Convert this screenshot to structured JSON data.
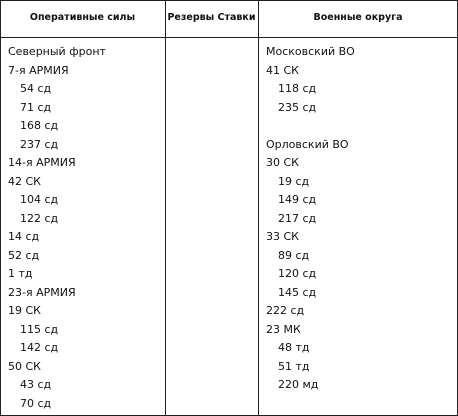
{
  "table": {
    "headers": [
      "Оперативные силы",
      "Резервы Ставки",
      "Военные округа"
    ],
    "columns": [
      [
        {
          "title": "Северный фронт",
          "units": [
            {
              "label": "7-я АРМИЯ",
              "sub": [
                "54 сд",
                "71 сд",
                "168 сд",
                "237 сд"
              ]
            },
            {
              "label": "14-я АРМИЯ"
            },
            {
              "label": "42 СК",
              "sub": [
                "104 сд",
                "122 сд"
              ]
            },
            {
              "label": "14 сд"
            },
            {
              "label": "52 сд"
            },
            {
              "label": "1 тд"
            },
            {
              "label": "23-я АРМИЯ"
            },
            {
              "label": "19 СК",
              "sub": [
                "115 сд",
                "142 сд"
              ]
            },
            {
              "label": "50 СК",
              "sub": [
                "43 сд",
                "70 сд"
              ]
            }
          ]
        }
      ],
      [],
      [
        {
          "title": "Московский ВО",
          "units": [
            {
              "label": "41 СК",
              "sub": [
                "118 сд",
                "235 сд"
              ]
            }
          ]
        },
        {
          "title": "Орловский ВО",
          "units": [
            {
              "label": "30 СК",
              "sub": [
                "19 сд",
                "149 сд",
                "217 сд"
              ]
            },
            {
              "label": "33 СК",
              "sub": [
                "89 сд",
                "120 сд",
                "145 сд"
              ]
            },
            {
              "label": "222 сд"
            },
            {
              "label": "23 МК",
              "sub": [
                "48 тд",
                "51 тд",
                "220 мд"
              ]
            }
          ]
        }
      ]
    ]
  }
}
